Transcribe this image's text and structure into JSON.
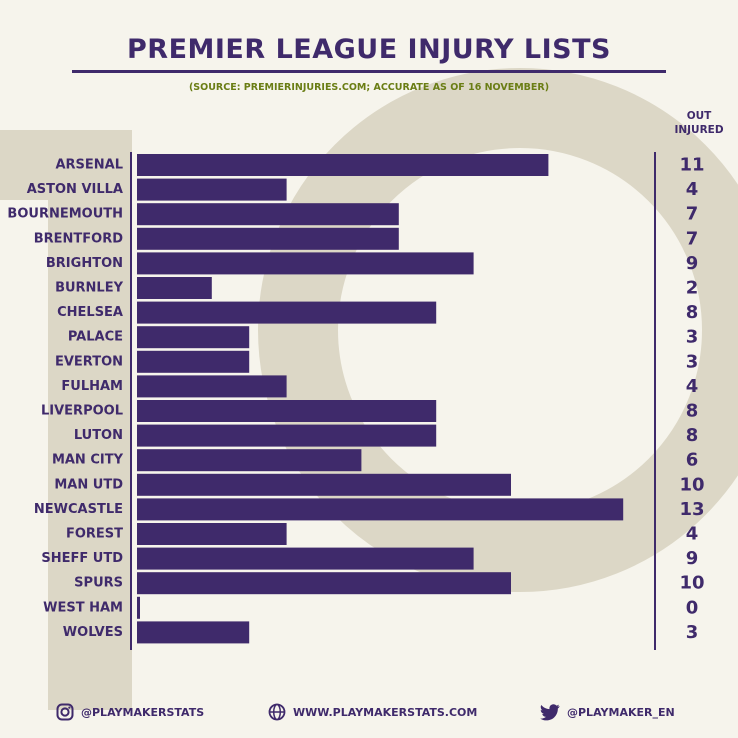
{
  "header": {
    "title": "PREMIER LEAGUE INJURY LISTS",
    "subtitle": "(SOURCE: PREMIERINJURIES.COM; ACCURATE AS OF 16 NOVEMBER)",
    "column_head_line1": "OUT",
    "column_head_line2": "INJURED"
  },
  "colors": {
    "bar": "#3f2a6b",
    "text": "#3f2a6b",
    "subtitle": "#6a7d14",
    "background": "#f6f4ec",
    "background_art": "#dcd7c6"
  },
  "chart_data": {
    "type": "bar",
    "orientation": "horizontal",
    "title": "PREMIER LEAGUE INJURY LISTS",
    "subtitle": "(SOURCE: PREMIERINJURIES.COM; ACCURATE AS OF 16 NOVEMBER)",
    "value_label_header": "OUT INJURED",
    "categories": [
      "ARSENAL",
      "ASTON VILLA",
      "BOURNEMOUTH",
      "BRENTFORD",
      "BRIGHTON",
      "BURNLEY",
      "CHELSEA",
      "PALACE",
      "EVERTON",
      "FULHAM",
      "LIVERPOOL",
      "LUTON",
      "MAN CITY",
      "MAN UTD",
      "NEWCASTLE",
      "FOREST",
      "SHEFF UTD",
      "SPURS",
      "WEST HAM",
      "WOLVES"
    ],
    "values": [
      11,
      4,
      7,
      7,
      9,
      2,
      8,
      3,
      3,
      4,
      8,
      8,
      6,
      10,
      13,
      4,
      9,
      10,
      0,
      3
    ],
    "xlim": [
      0,
      13
    ],
    "grid": false,
    "legend": "none"
  },
  "footer": {
    "instagram_handle": "@PLAYMAKERSTATS",
    "website": "WWW.PLAYMAKERSTATS.COM",
    "twitter_handle": "@PLAYMAKER_EN"
  }
}
